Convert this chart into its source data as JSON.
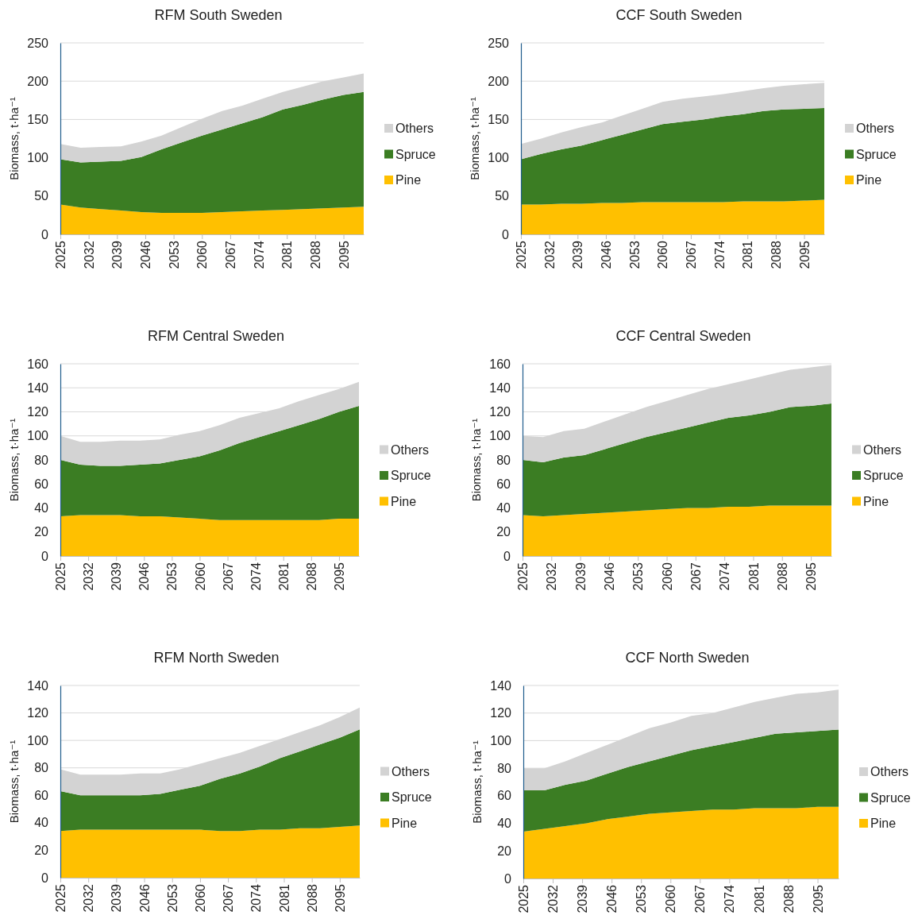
{
  "chart_data": [
    {
      "type": "area",
      "stacked": true,
      "title": "RFM South Sweden",
      "ylabel": "Biomass, t·ha⁻¹",
      "x": [
        2025,
        2030,
        2035,
        2040,
        2045,
        2050,
        2055,
        2060,
        2065,
        2070,
        2075,
        2080,
        2085,
        2090,
        2095,
        2100
      ],
      "xlim": [
        2025,
        2100
      ],
      "xticks": [
        2025,
        2032,
        2039,
        2046,
        2053,
        2060,
        2067,
        2074,
        2081,
        2088,
        2095
      ],
      "ylim": [
        0,
        250
      ],
      "yticks": [
        0,
        50,
        100,
        150,
        200,
        250
      ],
      "grid": "y",
      "legend": "right",
      "series": [
        {
          "name": "Pine",
          "color": "#ffc000",
          "values": [
            39,
            35,
            33,
            31,
            29,
            28,
            28,
            28,
            29,
            30,
            31,
            32,
            33,
            34,
            35,
            36
          ]
        },
        {
          "name": "Spruce",
          "color": "#3b7d23",
          "values": [
            59,
            59,
            62,
            65,
            72,
            83,
            92,
            101,
            108,
            115,
            122,
            131,
            136,
            142,
            147,
            150
          ]
        },
        {
          "name": "Others",
          "color": "#d3d3d3",
          "values": [
            20,
            19,
            19,
            19,
            20,
            18,
            20,
            22,
            24,
            23,
            24,
            23,
            24,
            24,
            23,
            24
          ]
        }
      ]
    },
    {
      "type": "area",
      "stacked": true,
      "title": "CCF South Sweden",
      "ylabel": "Biomass, t·ha⁻¹",
      "x": [
        2025,
        2030,
        2035,
        2040,
        2045,
        2050,
        2055,
        2060,
        2065,
        2070,
        2075,
        2080,
        2085,
        2090,
        2095,
        2100
      ],
      "xlim": [
        2025,
        2100
      ],
      "xticks": [
        2025,
        2032,
        2039,
        2046,
        2053,
        2060,
        2067,
        2074,
        2081,
        2088,
        2095
      ],
      "ylim": [
        0,
        250
      ],
      "yticks": [
        0,
        50,
        100,
        150,
        200,
        250
      ],
      "grid": "y",
      "legend": "right",
      "series": [
        {
          "name": "Pine",
          "color": "#ffc000",
          "values": [
            39,
            39,
            40,
            40,
            41,
            41,
            42,
            42,
            42,
            42,
            42,
            43,
            43,
            43,
            44,
            45
          ]
        },
        {
          "name": "Spruce",
          "color": "#3b7d23",
          "values": [
            59,
            66,
            71,
            76,
            82,
            89,
            95,
            102,
            105,
            108,
            112,
            114,
            118,
            120,
            120,
            120
          ]
        },
        {
          "name": "Others",
          "color": "#d3d3d3",
          "values": [
            20,
            20,
            22,
            24,
            23,
            25,
            27,
            29,
            30,
            30,
            29,
            30,
            30,
            31,
            32,
            33
          ]
        }
      ]
    },
    {
      "type": "area",
      "stacked": true,
      "title": "RFM Central Sweden",
      "ylabel": "Biomass, t·ha⁻¹",
      "x": [
        2025,
        2030,
        2035,
        2040,
        2045,
        2050,
        2055,
        2060,
        2065,
        2070,
        2075,
        2080,
        2085,
        2090,
        2095,
        2100
      ],
      "xlim": [
        2025,
        2100
      ],
      "xticks": [
        2025,
        2032,
        2039,
        2046,
        2053,
        2060,
        2067,
        2074,
        2081,
        2088,
        2095
      ],
      "ylim": [
        0,
        160
      ],
      "yticks": [
        0,
        20,
        40,
        60,
        80,
        100,
        120,
        140,
        160
      ],
      "grid": "y",
      "legend": "right",
      "series": [
        {
          "name": "Pine",
          "color": "#ffc000",
          "values": [
            33,
            34,
            34,
            34,
            33,
            33,
            32,
            31,
            30,
            30,
            30,
            30,
            30,
            30,
            31,
            31
          ]
        },
        {
          "name": "Spruce",
          "color": "#3b7d23",
          "values": [
            47,
            42,
            41,
            41,
            43,
            44,
            48,
            52,
            58,
            64,
            69,
            74,
            79,
            84,
            89,
            94
          ]
        },
        {
          "name": "Others",
          "color": "#d3d3d3",
          "values": [
            20,
            19,
            20,
            21,
            20,
            20,
            21,
            21,
            21,
            21,
            20,
            19,
            20,
            20,
            19,
            20
          ]
        }
      ]
    },
    {
      "type": "area",
      "stacked": true,
      "title": "CCF Central Sweden",
      "ylabel": "Biomass, t·ha⁻¹",
      "x": [
        2025,
        2030,
        2035,
        2040,
        2045,
        2050,
        2055,
        2060,
        2065,
        2070,
        2075,
        2080,
        2085,
        2090,
        2095,
        2100
      ],
      "xlim": [
        2025,
        2100
      ],
      "xticks": [
        2025,
        2032,
        2039,
        2046,
        2053,
        2060,
        2067,
        2074,
        2081,
        2088,
        2095
      ],
      "ylim": [
        0,
        160
      ],
      "yticks": [
        0,
        20,
        40,
        60,
        80,
        100,
        120,
        140,
        160
      ],
      "grid": "y",
      "legend": "right",
      "series": [
        {
          "name": "Pine",
          "color": "#ffc000",
          "values": [
            34,
            33,
            34,
            35,
            36,
            37,
            38,
            39,
            40,
            40,
            41,
            41,
            42,
            42,
            42,
            42
          ]
        },
        {
          "name": "Spruce",
          "color": "#3b7d23",
          "values": [
            46,
            45,
            48,
            49,
            53,
            57,
            61,
            64,
            67,
            71,
            74,
            76,
            78,
            82,
            83,
            85
          ]
        },
        {
          "name": "Others",
          "color": "#d3d3d3",
          "values": [
            20,
            21,
            22,
            22,
            23,
            24,
            25,
            26,
            27,
            28,
            28,
            30,
            31,
            31,
            32,
            32
          ]
        }
      ]
    },
    {
      "type": "area",
      "stacked": true,
      "title": "RFM North Sweden",
      "ylabel": "Biomass, t·ha⁻¹",
      "x": [
        2025,
        2030,
        2035,
        2040,
        2045,
        2050,
        2055,
        2060,
        2065,
        2070,
        2075,
        2080,
        2085,
        2090,
        2095,
        2100
      ],
      "xlim": [
        2025,
        2100
      ],
      "xticks": [
        2025,
        2032,
        2039,
        2046,
        2053,
        2060,
        2067,
        2074,
        2081,
        2088,
        2095
      ],
      "ylim": [
        0,
        140
      ],
      "yticks": [
        0,
        20,
        40,
        60,
        80,
        100,
        120,
        140
      ],
      "grid": "y",
      "legend": "right",
      "series": [
        {
          "name": "Pine",
          "color": "#ffc000",
          "values": [
            34,
            35,
            35,
            35,
            35,
            35,
            35,
            35,
            34,
            34,
            35,
            35,
            36,
            36,
            37,
            38
          ]
        },
        {
          "name": "Spruce",
          "color": "#3b7d23",
          "values": [
            29,
            25,
            25,
            25,
            25,
            26,
            29,
            32,
            38,
            42,
            46,
            52,
            56,
            61,
            65,
            70
          ]
        },
        {
          "name": "Others",
          "color": "#d3d3d3",
          "values": [
            16,
            15,
            15,
            15,
            16,
            15,
            15,
            16,
            15,
            15,
            15,
            14,
            14,
            14,
            15,
            16
          ]
        }
      ]
    },
    {
      "type": "area",
      "stacked": true,
      "title": "CCF North Sweden",
      "ylabel": "Biomass, t·ha⁻¹",
      "x": [
        2025,
        2030,
        2035,
        2040,
        2045,
        2050,
        2055,
        2060,
        2065,
        2070,
        2075,
        2080,
        2085,
        2090,
        2095,
        2100
      ],
      "xlim": [
        2025,
        2100
      ],
      "xticks": [
        2025,
        2032,
        2039,
        2046,
        2053,
        2060,
        2067,
        2074,
        2081,
        2088,
        2095
      ],
      "ylim": [
        0,
        140
      ],
      "yticks": [
        0,
        20,
        40,
        60,
        80,
        100,
        120,
        140
      ],
      "grid": "y",
      "legend": "right",
      "series": [
        {
          "name": "Pine",
          "color": "#ffc000",
          "values": [
            34,
            36,
            38,
            40,
            43,
            45,
            47,
            48,
            49,
            50,
            50,
            51,
            51,
            51,
            52,
            52
          ]
        },
        {
          "name": "Spruce",
          "color": "#3b7d23",
          "values": [
            30,
            28,
            30,
            31,
            33,
            36,
            38,
            41,
            44,
            46,
            49,
            51,
            54,
            55,
            55,
            56
          ]
        },
        {
          "name": "Others",
          "color": "#d3d3d3",
          "values": [
            16,
            16,
            17,
            20,
            21,
            22,
            24,
            24,
            25,
            24,
            25,
            26,
            26,
            28,
            28,
            29
          ]
        }
      ]
    }
  ]
}
